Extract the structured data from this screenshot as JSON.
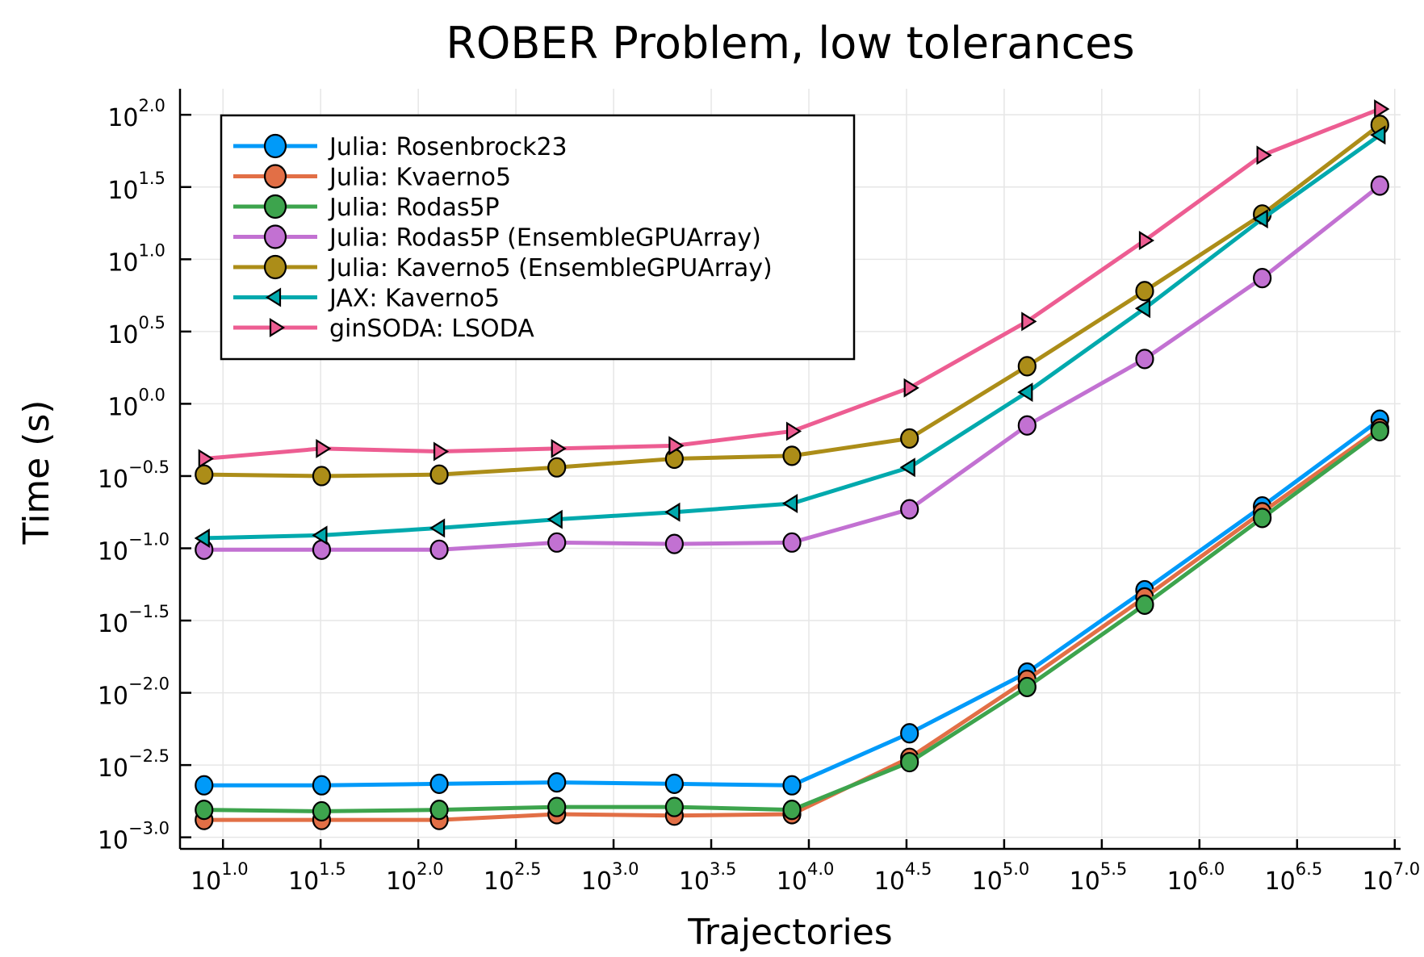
{
  "chart_data": {
    "type": "line",
    "title": "ROBER Problem, low tolerances",
    "xlabel": "Trajectories",
    "ylabel": "Time (s)",
    "xscale": "log10",
    "yscale": "log10",
    "xlim_log10": [
      0.78,
      7.03
    ],
    "ylim_log10": [
      -3.08,
      2.18
    ],
    "grid": true,
    "legend_position": "top-left",
    "x_ticks": [
      {
        "base": "10",
        "exp": "1.0",
        "value_log10": 1.0
      },
      {
        "base": "10",
        "exp": "1.5",
        "value_log10": 1.5
      },
      {
        "base": "10",
        "exp": "2.0",
        "value_log10": 2.0
      },
      {
        "base": "10",
        "exp": "2.5",
        "value_log10": 2.5
      },
      {
        "base": "10",
        "exp": "3.0",
        "value_log10": 3.0
      },
      {
        "base": "10",
        "exp": "3.5",
        "value_log10": 3.5
      },
      {
        "base": "10",
        "exp": "4.0",
        "value_log10": 4.0
      },
      {
        "base": "10",
        "exp": "4.5",
        "value_log10": 4.5
      },
      {
        "base": "10",
        "exp": "5.0",
        "value_log10": 5.0
      },
      {
        "base": "10",
        "exp": "5.5",
        "value_log10": 5.5
      },
      {
        "base": "10",
        "exp": "6.0",
        "value_log10": 6.0
      },
      {
        "base": "10",
        "exp": "6.5",
        "value_log10": 6.5
      },
      {
        "base": "10",
        "exp": "7.0",
        "value_log10": 7.0
      }
    ],
    "y_ticks": [
      {
        "base": "10",
        "exp": "2.0",
        "value_log10": 2.0
      },
      {
        "base": "10",
        "exp": "1.5",
        "value_log10": 1.5
      },
      {
        "base": "10",
        "exp": "1.0",
        "value_log10": 1.0
      },
      {
        "base": "10",
        "exp": "0.5",
        "value_log10": 0.5
      },
      {
        "base": "10",
        "exp": "0.0",
        "value_log10": 0.0
      },
      {
        "base": "10",
        "exp": "−0.5",
        "value_log10": -0.5
      },
      {
        "base": "10",
        "exp": "−1.0",
        "value_log10": -1.0
      },
      {
        "base": "10",
        "exp": "−1.5",
        "value_log10": -1.5
      },
      {
        "base": "10",
        "exp": "−2.0",
        "value_log10": -2.0
      },
      {
        "base": "10",
        "exp": "−2.5",
        "value_log10": -2.5
      },
      {
        "base": "10",
        "exp": "−3.0",
        "value_log10": -3.0
      }
    ],
    "x": [
      8,
      32,
      128,
      512,
      2048,
      8192,
      32768,
      131072,
      524288,
      2097152,
      8388608
    ],
    "series": [
      {
        "name": "Julia: Rosenbrock23",
        "color": "#009af9",
        "marker": "circle",
        "values_log10": [
          -2.64,
          -2.64,
          -2.63,
          -2.62,
          -2.63,
          -2.64,
          -2.28,
          -1.86,
          -1.29,
          -0.71,
          -0.11
        ]
      },
      {
        "name": "Julia: Kvaerno5",
        "color": "#e26f46",
        "marker": "circle",
        "values_log10": [
          -2.88,
          -2.88,
          -2.88,
          -2.84,
          -2.85,
          -2.84,
          -2.45,
          -1.91,
          -1.34,
          -0.75,
          -0.17
        ]
      },
      {
        "name": "Julia: Rodas5P",
        "color": "#3da44d",
        "marker": "circle",
        "values_log10": [
          -2.81,
          -2.82,
          -2.81,
          -2.79,
          -2.79,
          -2.81,
          -2.48,
          -1.96,
          -1.39,
          -0.79,
          -0.19
        ]
      },
      {
        "name": "Julia: Rodas5P (EnsembleGPUArray)",
        "color": "#c271d2",
        "marker": "circle",
        "values_log10": [
          -1.01,
          -1.01,
          -1.01,
          -0.96,
          -0.97,
          -0.96,
          -0.73,
          -0.15,
          0.31,
          0.87,
          1.51
        ]
      },
      {
        "name": "Julia: Kaverno5 (EnsembleGPUArray)",
        "color": "#ac8d18",
        "marker": "circle",
        "values_log10": [
          -0.49,
          -0.5,
          -0.49,
          -0.44,
          -0.38,
          -0.36,
          -0.24,
          0.26,
          0.78,
          1.31,
          1.93
        ]
      },
      {
        "name": "JAX: Kaverno5",
        "color": "#00a9ad",
        "marker": "triangle-left",
        "values_log10": [
          -0.93,
          -0.91,
          -0.86,
          -0.8,
          -0.75,
          -0.69,
          -0.44,
          0.08,
          0.66,
          1.28,
          1.86
        ]
      },
      {
        "name": "ginSODA: LSODA",
        "color": "#ed5d92",
        "marker": "triangle-right",
        "values_log10": [
          -0.38,
          -0.31,
          -0.33,
          -0.31,
          -0.29,
          -0.19,
          0.11,
          0.57,
          1.13,
          1.72,
          2.04
        ]
      }
    ]
  }
}
